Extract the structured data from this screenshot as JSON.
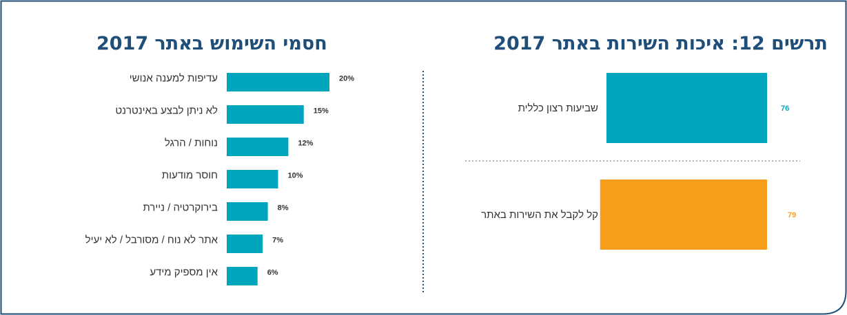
{
  "colors": {
    "frame": "#1f4e79",
    "title": "#1f4e79",
    "teal": "#00a5bd",
    "orange": "#f89c1c",
    "divider": "#1f4e79"
  },
  "chart_data": [
    {
      "type": "bar",
      "orientation": "horizontal",
      "title": "תרשים 12: איכות השירות באתר 2017",
      "categories": [
        "שביעות רצון כללית",
        "קל לקבל את השירות באתר"
      ],
      "values": [
        76,
        79
      ],
      "value_labels": [
        "76",
        "79"
      ],
      "bar_colors": [
        "#00a5bd",
        "#f89c1c"
      ],
      "xlim": [
        0,
        100
      ]
    },
    {
      "type": "bar",
      "orientation": "horizontal",
      "title": "חסמי השימוש באתר 2017",
      "categories": [
        "עדיפות למענה אנושי",
        "לא ניתן לבצע באינטרנט",
        "נוחות / הרגל",
        "חוסר מודעות",
        "בירוקרטיה / ניירת",
        "אתר לא נוח / מסורבל / לא יעיל",
        "אין מספיק מידע"
      ],
      "values": [
        20,
        15,
        12,
        10,
        8,
        7,
        6
      ],
      "value_labels": [
        "20%",
        "15%",
        "12%",
        "10%",
        "8%",
        "7%",
        "6%"
      ],
      "bar_color": "#00a5bd",
      "xlim": [
        0,
        20
      ]
    }
  ]
}
